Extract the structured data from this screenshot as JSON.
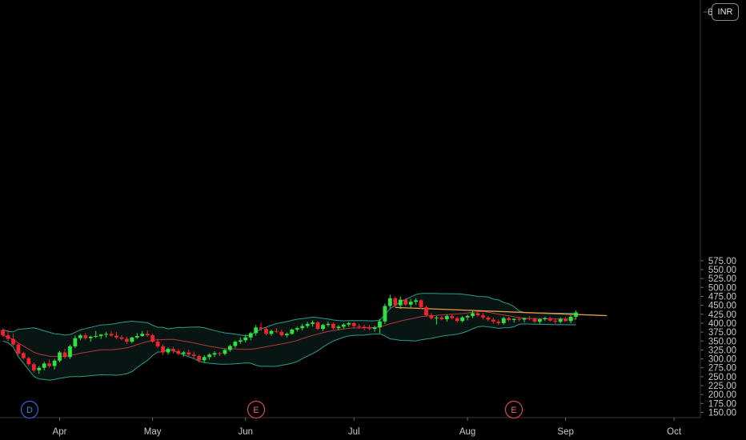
{
  "currency_button": "INR",
  "chart_data": {
    "type": "candlestick",
    "interval_marker": "D",
    "earnings_markers": [
      "E",
      "E"
    ],
    "overlays": [
      "bollinger_bands",
      "moving_average",
      "trendline"
    ],
    "colors": {
      "up": "#2ee33f",
      "down": "#f2232c",
      "band": "#2a9d8f",
      "basis": "#b2383d",
      "trendline": "#e39a45"
    },
    "y_axis": {
      "ticks": [
        150,
        175,
        200,
        225,
        250,
        275,
        300,
        325,
        350,
        375,
        400,
        425,
        450,
        475,
        500,
        525,
        550,
        575
      ],
      "tick_labels": [
        "150.00",
        "175.00",
        "200.00",
        "225.00",
        "250.00",
        "275.00",
        "300.00",
        "325.00",
        "350.00",
        "375.00",
        "400.00",
        "425.00",
        "450.00",
        "475.00",
        "500.00",
        "525.00",
        "550.00",
        "575.00"
      ],
      "top_label": "6"
    },
    "x_axis": {
      "labels": [
        "Apr",
        "May",
        "Jun",
        "Jul",
        "Aug",
        "Sep",
        "Oct"
      ]
    },
    "trendline": {
      "from": {
        "day": 76,
        "price": 444
      },
      "to": {
        "day": 117,
        "price": 421
      }
    },
    "candles": [
      [
        381,
        385,
        362,
        366
      ],
      [
        366,
        382,
        350,
        356
      ],
      [
        356,
        370,
        336,
        340
      ],
      [
        340,
        345,
        310,
        315
      ],
      [
        316,
        320,
        298,
        302
      ],
      [
        302,
        306,
        280,
        285
      ],
      [
        285,
        290,
        262,
        268
      ],
      [
        268,
        280,
        258,
        275
      ],
      [
        275,
        292,
        268,
        287
      ],
      [
        287,
        298,
        275,
        280
      ],
      [
        280,
        300,
        270,
        295
      ],
      [
        295,
        322,
        290,
        318
      ],
      [
        318,
        328,
        300,
        305
      ],
      [
        305,
        340,
        300,
        335
      ],
      [
        335,
        365,
        330,
        358
      ],
      [
        358,
        370,
        352,
        366
      ],
      [
        366,
        372,
        354,
        358
      ],
      [
        358,
        365,
        348,
        362
      ],
      [
        362,
        378,
        358,
        364
      ],
      [
        364,
        370,
        356,
        368
      ],
      [
        368,
        376,
        360,
        370
      ],
      [
        370,
        378,
        362,
        365
      ],
      [
        365,
        375,
        355,
        360
      ],
      [
        360,
        366,
        352,
        356
      ],
      [
        356,
        362,
        342,
        348
      ],
      [
        348,
        362,
        344,
        360
      ],
      [
        360,
        372,
        356,
        364
      ],
      [
        364,
        378,
        362,
        370
      ],
      [
        370,
        380,
        362,
        366
      ],
      [
        366,
        370,
        345,
        348
      ],
      [
        348,
        356,
        330,
        335
      ],
      [
        335,
        340,
        310,
        318
      ],
      [
        318,
        332,
        312,
        328
      ],
      [
        328,
        334,
        315,
        322
      ],
      [
        322,
        328,
        310,
        314
      ],
      [
        314,
        322,
        306,
        318
      ],
      [
        318,
        326,
        308,
        312
      ],
      [
        312,
        320,
        302,
        308
      ],
      [
        308,
        312,
        290,
        296
      ],
      [
        296,
        310,
        290,
        305
      ],
      [
        305,
        316,
        298,
        312
      ],
      [
        312,
        322,
        305,
        316
      ],
      [
        316,
        320,
        308,
        314
      ],
      [
        314,
        328,
        310,
        325
      ],
      [
        325,
        340,
        320,
        336
      ],
      [
        336,
        352,
        330,
        348
      ],
      [
        348,
        360,
        342,
        352
      ],
      [
        352,
        368,
        346,
        360
      ],
      [
        360,
        376,
        352,
        372
      ],
      [
        372,
        395,
        365,
        388
      ],
      [
        388,
        402,
        378,
        384
      ],
      [
        384,
        390,
        366,
        370
      ],
      [
        370,
        382,
        365,
        378
      ],
      [
        378,
        386,
        372,
        376
      ],
      [
        376,
        382,
        362,
        366
      ],
      [
        366,
        374,
        360,
        370
      ],
      [
        370,
        385,
        368,
        382
      ],
      [
        382,
        390,
        376,
        386
      ],
      [
        386,
        398,
        380,
        392
      ],
      [
        392,
        404,
        386,
        398
      ],
      [
        398,
        408,
        390,
        402
      ],
      [
        402,
        406,
        380,
        384
      ],
      [
        384,
        398,
        378,
        395
      ],
      [
        395,
        404,
        390,
        398
      ],
      [
        398,
        402,
        382,
        386
      ],
      [
        386,
        395,
        380,
        390
      ],
      [
        390,
        400,
        384,
        396
      ],
      [
        396,
        404,
        390,
        400
      ],
      [
        400,
        404,
        388,
        392
      ],
      [
        392,
        398,
        384,
        390
      ],
      [
        390,
        396,
        380,
        386
      ],
      [
        386,
        394,
        380,
        384
      ],
      [
        384,
        392,
        376,
        388
      ],
      [
        388,
        412,
        372,
        405
      ],
      [
        405,
        455,
        398,
        448
      ],
      [
        448,
        480,
        440,
        470
      ],
      [
        470,
        475,
        445,
        450
      ],
      [
        450,
        475,
        440,
        466
      ],
      [
        466,
        470,
        448,
        452
      ],
      [
        452,
        468,
        444,
        460
      ],
      [
        460,
        470,
        452,
        464
      ],
      [
        464,
        468,
        440,
        445
      ],
      [
        445,
        450,
        418,
        422
      ],
      [
        422,
        428,
        410,
        414
      ],
      [
        414,
        420,
        396,
        416
      ],
      [
        416,
        420,
        408,
        411
      ],
      [
        411,
        424,
        404,
        420
      ],
      [
        420,
        426,
        410,
        414
      ],
      [
        414,
        418,
        402,
        406
      ],
      [
        406,
        420,
        402,
        416
      ],
      [
        416,
        424,
        408,
        420
      ],
      [
        420,
        434,
        414,
        428
      ],
      [
        428,
        432,
        418,
        422
      ],
      [
        422,
        428,
        410,
        416
      ],
      [
        416,
        420,
        405,
        410
      ],
      [
        410,
        416,
        398,
        404
      ],
      [
        404,
        410,
        395,
        400
      ],
      [
        400,
        418,
        396,
        414
      ],
      [
        414,
        418,
        404,
        409
      ],
      [
        409,
        414,
        402,
        412
      ],
      [
        412,
        418,
        405,
        410
      ],
      [
        410,
        416,
        402,
        414
      ],
      [
        414,
        420,
        408,
        412
      ],
      [
        412,
        416,
        400,
        404
      ],
      [
        404,
        414,
        398,
        411
      ],
      [
        411,
        418,
        406,
        414
      ],
      [
        414,
        418,
        404,
        407
      ],
      [
        407,
        414,
        398,
        404
      ],
      [
        404,
        416,
        400,
        412
      ],
      [
        412,
        418,
        404,
        406
      ],
      [
        406,
        422,
        400,
        418
      ],
      [
        418,
        436,
        410,
        430
      ]
    ]
  }
}
